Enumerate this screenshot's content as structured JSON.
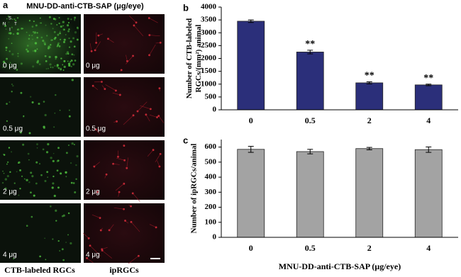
{
  "panel_a": {
    "label": "a",
    "title": "MNU-DD-anti-CTB-SAP (μg/eye)",
    "compass": [
      "S",
      "N",
      "T",
      "I"
    ],
    "doses": [
      "0 μg",
      "0.5 μg",
      "2 μg",
      "4 μg"
    ],
    "columns": [
      "CTB-labeled RGCs",
      "ipRGCs"
    ]
  },
  "chart_data": [
    {
      "type": "bar",
      "label": "b",
      "y_label": [
        "Number of CTB-labeled",
        "RGCs/(mm²) animal"
      ],
      "categories": [
        "0",
        "0.5",
        "2",
        "4"
      ],
      "values": [
        3450,
        2250,
        1050,
        970
      ],
      "errors": [
        50,
        70,
        40,
        30
      ],
      "significance": [
        null,
        "**",
        "**",
        "**"
      ],
      "color": "#2b2f7a",
      "ylim": [
        0,
        4000
      ],
      "yticks": [
        0,
        500,
        1000,
        1500,
        2000,
        2500,
        3000,
        3500,
        4000
      ]
    },
    {
      "type": "bar",
      "label": "c",
      "y_label": [
        "Number of ipRGCs/animal"
      ],
      "x_label": "MNU-DD-anti-CTB-SAP (μg/eye)",
      "categories": [
        "0",
        "0.5",
        "2",
        "4"
      ],
      "values": [
        585,
        570,
        590,
        583
      ],
      "errors": [
        20,
        15,
        8,
        18
      ],
      "color": "#a3a3a3",
      "ylim": [
        0,
        650
      ],
      "yticks": [
        0,
        100,
        200,
        300,
        400,
        500,
        600
      ]
    }
  ]
}
